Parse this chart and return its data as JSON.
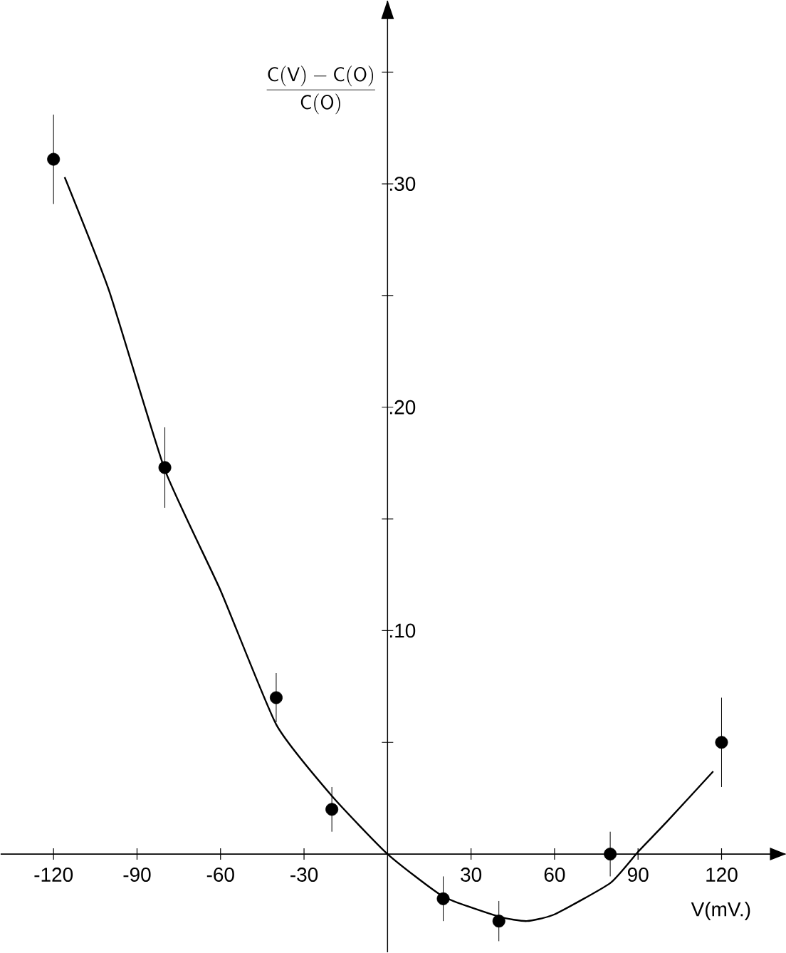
{
  "chart_data": {
    "type": "scatter",
    "xlabel": "V(mV.)",
    "ylabel": "\\frac{\\mathsf{C(V)-C(O)}}{\\mathsf{C(O)}}",
    "xlim": [
      -139,
      143
    ],
    "ylim": [
      -0.044,
      0.382
    ],
    "xticks": [
      -120,
      -90,
      -60,
      -30,
      30,
      60,
      90,
      120
    ],
    "yticks": [
      {
        "value": 0.05,
        "label": null
      },
      {
        "value": 0.1,
        "label": ".10"
      },
      {
        "value": 0.15,
        "label": null
      },
      {
        "value": 0.2,
        "label": ".20"
      },
      {
        "value": 0.25,
        "label": null
      },
      {
        "value": 0.3,
        "label": ".30"
      },
      {
        "value": 0.35,
        "label": null
      }
    ],
    "grid": false,
    "series": [
      {
        "type": "scatter",
        "color": "#000000",
        "marker": "circle",
        "x": [
          -120,
          -80,
          -40,
          -20,
          20,
          40,
          80,
          120
        ],
        "values": [
          0.311,
          0.173,
          0.07,
          0.02,
          -0.02,
          -0.03,
          0.0,
          0.05
        ],
        "errors": [
          0.02,
          0.018,
          0.011,
          0.01,
          0.01,
          0.009,
          0.01,
          0.02
        ]
      },
      {
        "type": "line",
        "color": "#000000",
        "marker": "none",
        "line_style": "solid",
        "x": [
          -116,
          -100,
          -80,
          -60,
          -40,
          -20,
          0,
          20,
          40,
          50,
          60,
          80,
          90,
          100,
          117
        ],
        "values": [
          0.303,
          0.252,
          0.172,
          0.118,
          0.058,
          0.026,
          0.0,
          -0.019,
          -0.028,
          -0.03,
          -0.027,
          -0.013,
          0.001,
          0.014,
          0.037
        ]
      }
    ]
  }
}
